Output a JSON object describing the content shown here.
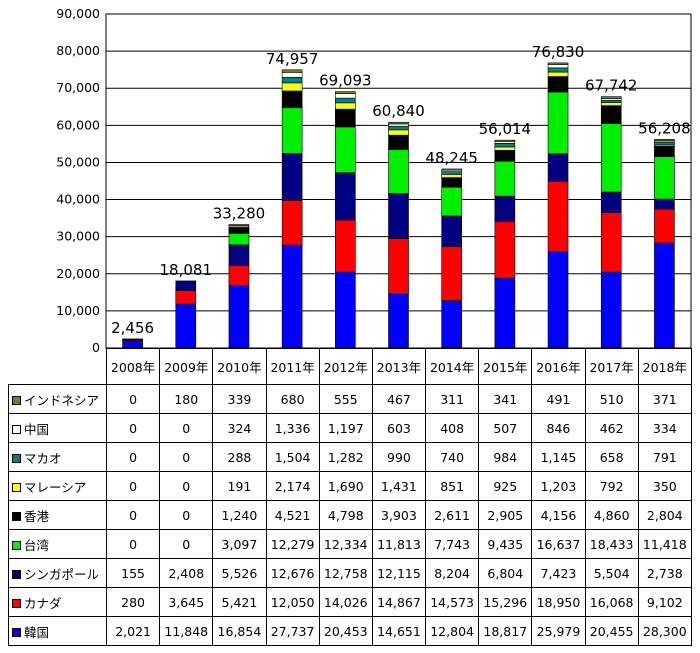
{
  "chart_data": {
    "type": "bar",
    "stacked": true,
    "categories": [
      "2008年",
      "2009年",
      "2010年",
      "2011年",
      "2012年",
      "2013年",
      "2014年",
      "2015年",
      "2016年",
      "2017年",
      "2018年"
    ],
    "totals": [
      2456,
      18081,
      33280,
      74957,
      69093,
      60840,
      48245,
      56014,
      76830,
      67742,
      56208
    ],
    "total_labels": [
      "2,456",
      "18,081",
      "33,280",
      "74,957",
      "69,093",
      "60,840",
      "48,245",
      "56,014",
      "76,830",
      "67,742",
      "56,208"
    ],
    "ylim": [
      0,
      90000
    ],
    "ytick_values": [
      0,
      10000,
      20000,
      30000,
      40000,
      50000,
      60000,
      70000,
      80000,
      90000
    ],
    "ytick_labels": [
      "0",
      "10,000",
      "20,000",
      "30,000",
      "40,000",
      "50,000",
      "60,000",
      "70,000",
      "80,000",
      "90,000"
    ],
    "legend_placement": "table-rows",
    "series": [
      {
        "name": "韓国",
        "color": "#0000ff",
        "values": [
          2021,
          11848,
          16854,
          27737,
          20453,
          14651,
          12804,
          18817,
          25979,
          20455,
          28300
        ],
        "labels": [
          "2,021",
          "11,848",
          "16,854",
          "27,737",
          "20,453",
          "14,651",
          "12,804",
          "18,817",
          "25,979",
          "20,455",
          "28,300"
        ]
      },
      {
        "name": "カナダ",
        "color": "#ff0000",
        "values": [
          280,
          3645,
          5421,
          12050,
          14026,
          14867,
          14573,
          15296,
          18950,
          16068,
          9102
        ],
        "labels": [
          "280",
          "3,645",
          "5,421",
          "12,050",
          "14,026",
          "14,867",
          "14,573",
          "15,296",
          "18,950",
          "16,068",
          "9,102"
        ]
      },
      {
        "name": "シンガポール",
        "color": "#000080",
        "values": [
          155,
          2408,
          5526,
          12676,
          12758,
          12115,
          8204,
          6804,
          7423,
          5504,
          2738
        ],
        "labels": [
          "155",
          "2,408",
          "5,526",
          "12,676",
          "12,758",
          "12,115",
          "8,204",
          "6,804",
          "7,423",
          "5,504",
          "2,738"
        ]
      },
      {
        "name": "台湾",
        "color": "#00ee00",
        "values": [
          0,
          0,
          3097,
          12279,
          12334,
          11813,
          7743,
          9435,
          16637,
          18433,
          11418
        ],
        "labels": [
          "0",
          "0",
          "3,097",
          "12,279",
          "12,334",
          "11,813",
          "7,743",
          "9,435",
          "16,637",
          "18,433",
          "11,418"
        ]
      },
      {
        "name": "香港",
        "color": "#000000",
        "values": [
          0,
          0,
          1240,
          4521,
          4798,
          3903,
          2611,
          2905,
          4156,
          4860,
          2804
        ],
        "labels": [
          "0",
          "0",
          "1,240",
          "4,521",
          "4,798",
          "3,903",
          "2,611",
          "2,905",
          "4,156",
          "4,860",
          "2,804"
        ]
      },
      {
        "name": "マレーシア",
        "color": "#ffff00",
        "values": [
          0,
          0,
          191,
          2174,
          1690,
          1431,
          851,
          925,
          1203,
          792,
          350
        ],
        "labels": [
          "0",
          "0",
          "191",
          "2,174",
          "1,690",
          "1,431",
          "851",
          "925",
          "1,203",
          "792",
          "350"
        ]
      },
      {
        "name": "マカオ",
        "color": "#008080",
        "values": [
          0,
          0,
          288,
          1504,
          1282,
          990,
          740,
          984,
          1145,
          658,
          791
        ],
        "labels": [
          "0",
          "0",
          "288",
          "1,504",
          "1,282",
          "990",
          "740",
          "984",
          "1,145",
          "658",
          "791"
        ]
      },
      {
        "name": "中国",
        "color": "#ffffff",
        "values": [
          0,
          0,
          324,
          1336,
          1197,
          603,
          408,
          507,
          846,
          462,
          334
        ],
        "labels": [
          "0",
          "0",
          "324",
          "1,336",
          "1,197",
          "603",
          "408",
          "507",
          "846",
          "462",
          "334"
        ]
      },
      {
        "name": "インドネシア",
        "color": "#808000",
        "values": [
          0,
          180,
          339,
          680,
          555,
          467,
          311,
          341,
          491,
          510,
          371
        ],
        "labels": [
          "0",
          "180",
          "339",
          "680",
          "555",
          "467",
          "311",
          "341",
          "491",
          "510",
          "371"
        ]
      }
    ]
  }
}
